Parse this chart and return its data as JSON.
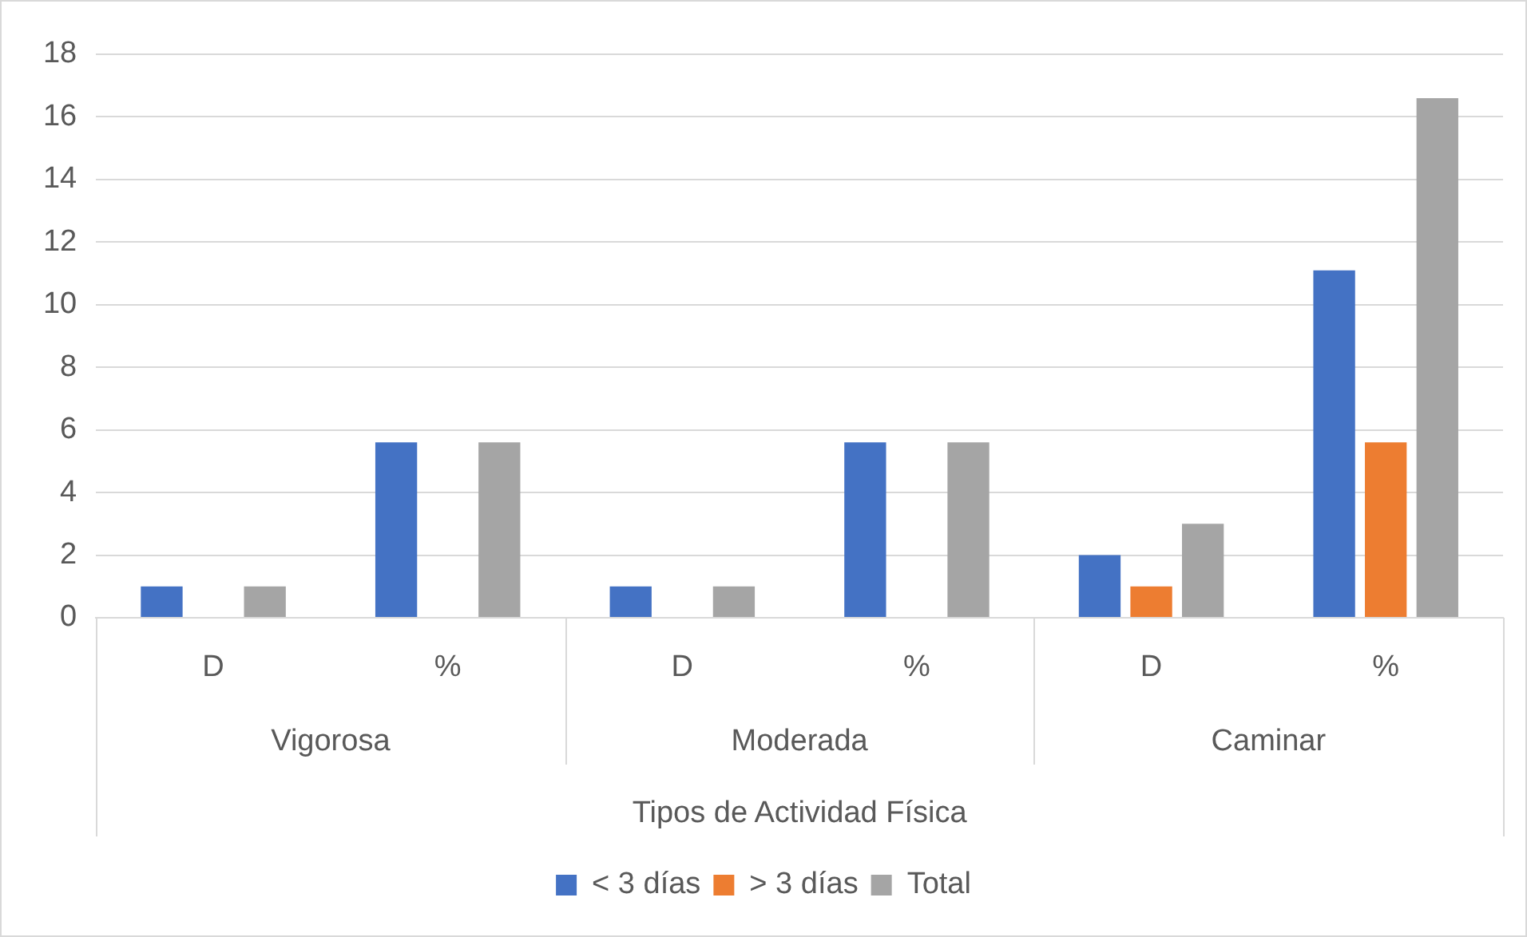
{
  "chart_data": {
    "type": "bar",
    "xlabel": "Tipos de Actividad Física",
    "categories": [
      "D",
      "%",
      "D",
      "%",
      "D",
      "%"
    ],
    "annotations": [
      "Vigorosa",
      "Moderada",
      "Caminar"
    ],
    "series": [
      {
        "name": "< 3 días",
        "color": "#4472c4",
        "values": [
          1,
          5.6,
          1,
          5.6,
          2,
          11.1
        ]
      },
      {
        "name": "> 3 días",
        "color": "#ed7d31",
        "values": [
          0,
          0,
          0,
          0,
          1,
          5.6
        ]
      },
      {
        "name": "Total",
        "color": "#a5a5a5",
        "values": [
          1,
          5.6,
          1,
          5.6,
          3,
          16.6
        ]
      }
    ],
    "ylim": [
      0,
      18
    ],
    "yticks": [
      0,
      2,
      4,
      6,
      8,
      10,
      12,
      14,
      16,
      18
    ],
    "grid": "y",
    "legend": "bottom"
  }
}
